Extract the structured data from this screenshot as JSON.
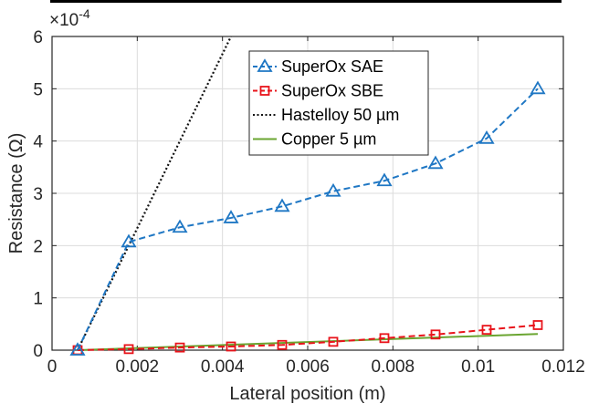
{
  "chart_data": {
    "type": "line",
    "title": "",
    "xlabel": "Lateral position (m)",
    "ylabel": "Resistance (Ω)",
    "y_exponent_label": "×10",
    "y_exponent": "-4",
    "xlim": [
      0,
      0.012
    ],
    "ylim": [
      0,
      6
    ],
    "x_ticks": [
      0,
      0.002,
      0.004,
      0.006,
      0.008,
      0.01,
      0.012
    ],
    "x_tick_labels": [
      "0",
      "0.002",
      "0.004",
      "0.006",
      "0.008",
      "0.01",
      "0.012"
    ],
    "y_ticks": [
      0,
      1,
      2,
      3,
      4,
      5,
      6
    ],
    "y_tick_labels": [
      "0",
      "1",
      "2",
      "3",
      "4",
      "5",
      "6"
    ],
    "grid": true,
    "legend_position": "top-center",
    "series": [
      {
        "name": "SuperOx SAE",
        "color": "#1f77c4",
        "line_style": "dashed",
        "marker": "triangle",
        "x": [
          0.0006,
          0.0018,
          0.003,
          0.0042,
          0.0054,
          0.0066,
          0.0078,
          0.009,
          0.0102,
          0.0114
        ],
        "y": [
          0.0,
          2.07,
          2.35,
          2.53,
          2.75,
          3.04,
          3.24,
          3.57,
          4.05,
          5.0
        ]
      },
      {
        "name": "SuperOx SBE",
        "color": "#e8141b",
        "line_style": "dashed",
        "marker": "square",
        "x": [
          0.0006,
          0.0018,
          0.003,
          0.0042,
          0.0054,
          0.0066,
          0.0078,
          0.009,
          0.0102,
          0.0114
        ],
        "y": [
          0.0,
          0.02,
          0.05,
          0.07,
          0.1,
          0.16,
          0.23,
          0.3,
          0.39,
          0.48
        ]
      },
      {
        "name": "Hastelloy 50 µm",
        "color": "#111111",
        "line_style": "dotted",
        "marker": "none",
        "x": [
          0.0006,
          0.0042
        ],
        "y": [
          0.0,
          6.0
        ]
      },
      {
        "name": "Copper 5 µm",
        "color": "#6aa531",
        "line_style": "solid",
        "marker": "none",
        "x": [
          0.0006,
          0.0114
        ],
        "y": [
          0.0,
          0.31
        ]
      }
    ]
  }
}
